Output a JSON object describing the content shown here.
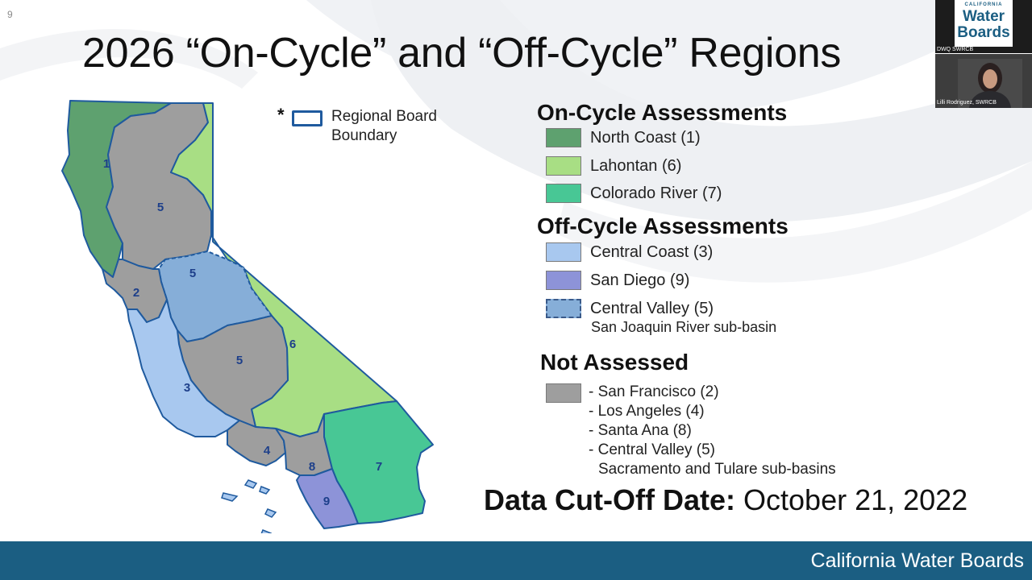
{
  "slide": {
    "number": "9",
    "title": "2026 “On-Cycle” and “Off-Cycle” Regions"
  },
  "map": {
    "region_labels": [
      "1",
      "5",
      "5",
      "5",
      "2",
      "3",
      "6",
      "4",
      "8",
      "7",
      "9"
    ],
    "colors": {
      "north_coast": "#5ea16f",
      "lahontan": "#a8de84",
      "colorado_river": "#48c795",
      "central_coast": "#a8c8ef",
      "san_diego": "#8d93d8",
      "san_joaquin": "#86aed8",
      "not_assessed": "#9e9e9e",
      "boundary": "#1f5a9e"
    }
  },
  "boundary_key": {
    "marker": "*",
    "line1": "Regional Board",
    "line2": "Boundary"
  },
  "legend": {
    "on_cycle_heading": "On-Cycle Assessments",
    "on_cycle": [
      {
        "label": "North Coast (1)",
        "color": "#5ea16f"
      },
      {
        "label": "Lahontan (6)",
        "color": "#a8de84"
      },
      {
        "label": "Colorado River (7)",
        "color": "#48c795"
      }
    ],
    "off_cycle_heading": "Off-Cycle Assessments",
    "off_cycle": [
      {
        "label": "Central Coast (3)",
        "color": "#a8c8ef"
      },
      {
        "label": "San Diego (9)",
        "color": "#8d93d8"
      },
      {
        "label": "Central Valley (5)",
        "color": "#86aed8"
      }
    ],
    "off_cycle_sub": "San Joaquin River sub-basin",
    "not_assessed_heading": "Not Assessed",
    "not_assessed_color": "#9e9e9e",
    "not_assessed": [
      "- San Francisco (2)",
      "- Los Angeles (4)",
      "- Santa Ana (8)",
      "- Central Valley (5)"
    ],
    "not_assessed_sub": "Sacramento and Tulare sub-basins"
  },
  "cutoff": {
    "label": "Data Cut-Off Date:",
    "date": "October 21, 2022"
  },
  "footer": {
    "text": "California Water Boards"
  },
  "video": {
    "logo_small": "CALIFORNIA",
    "logo_line1": "Water",
    "logo_line2": "Boards",
    "presenter_top": "DWQ SWRCB",
    "presenter_bottom": "Lilli Rodriguez, SWRCB"
  }
}
